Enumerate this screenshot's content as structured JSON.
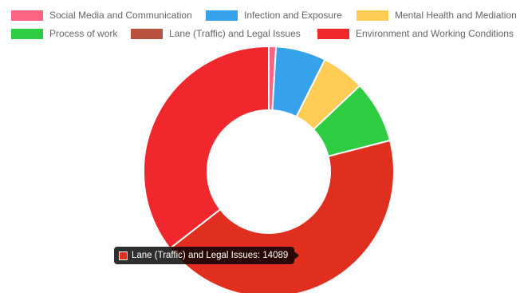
{
  "chart_data": {
    "type": "pie",
    "variant": "doughnut",
    "title": "",
    "legend_position": "top",
    "categories": [
      "Social Media and Communication",
      "Infection and Exposure",
      "Mental Health and Mediation",
      "Process of work",
      "Lane (Traffic) and Legal Issues",
      "Environment and Working Conditions"
    ],
    "values": [
      300,
      2100,
      1800,
      2600,
      14089,
      11500
    ],
    "colors": [
      "#ff6384",
      "#36a2eb",
      "#ffcd56",
      "#2ecc40",
      "#e02f1f",
      "#f0282e"
    ],
    "legend_colors": [
      "#ff6384",
      "#36a2eb",
      "#ffcd56",
      "#2ecc40",
      "#b9513f",
      "#f0282e"
    ]
  },
  "tooltip": {
    "text": "Lane (Traffic) and Legal Issues: 14089",
    "color": "#e02f1f"
  }
}
